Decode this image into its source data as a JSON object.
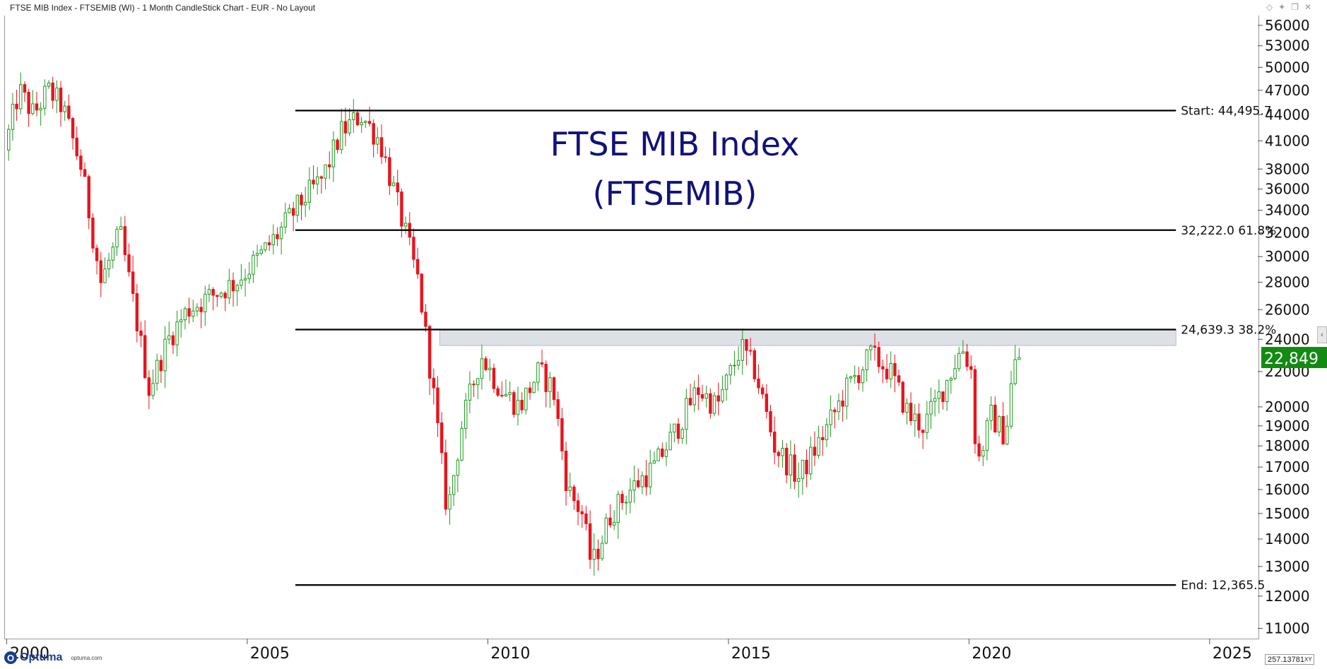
{
  "header": {
    "title": "FTSE MIB Index - FTSEMIB (WI) - 1 Month CandleStick Chart - EUR - No Layout"
  },
  "logo": {
    "name": "Optuma",
    "site": "optuma.com"
  },
  "status": {
    "coord": "257.13781",
    "xy_label": "XY"
  },
  "chart_data": {
    "type": "candlestick",
    "title": "FTSE MIB Index",
    "subtitle": "(FTSEMIB)",
    "x_ticks": [
      "2000",
      "2005",
      "2010",
      "2015",
      "2020",
      "2025"
    ],
    "y_ticks": [
      11000,
      12000,
      13000,
      14000,
      15000,
      16000,
      17000,
      18000,
      19000,
      20000,
      22000,
      24000,
      26000,
      28000,
      30000,
      32000,
      34000,
      36000,
      38000,
      41000,
      44000,
      47000,
      50000,
      53000,
      56000
    ],
    "y_scale": "log",
    "ylim": [
      10700,
      57500
    ],
    "xlim": [
      1999.95,
      2026.0
    ],
    "last_price_label": "22,849",
    "last_price": 22849,
    "levels": [
      {
        "label": "Start:   44,495.7",
        "value": 44495.7
      },
      {
        "label": "32,222.0   61.8%",
        "value": 32222.0
      },
      {
        "label": "24,639.3   38.2%",
        "value": 24639.3
      },
      {
        "label": "End:   12,365.5",
        "value": 12365.5
      }
    ],
    "level_x_range": [
      2006.0,
      2024.3
    ],
    "band": {
      "from": 23600,
      "to": 24639.3,
      "x_range": [
        2009.0,
        2024.3
      ]
    },
    "anchors": [
      [
        2000.0,
        40000
      ],
      [
        2000.3,
        47000
      ],
      [
        2000.6,
        44000
      ],
      [
        2000.9,
        47000
      ],
      [
        2001.2,
        45000
      ],
      [
        2001.6,
        38000
      ],
      [
        2002.0,
        28000
      ],
      [
        2002.4,
        32000
      ],
      [
        2002.7,
        26000
      ],
      [
        2003.0,
        21000
      ],
      [
        2003.4,
        24000
      ],
      [
        2003.8,
        26000
      ],
      [
        2004.3,
        27000
      ],
      [
        2004.8,
        28000
      ],
      [
        2005.3,
        30000
      ],
      [
        2005.7,
        32000
      ],
      [
        2006.2,
        35000
      ],
      [
        2006.6,
        37000
      ],
      [
        2007.0,
        42000
      ],
      [
        2007.4,
        44000
      ],
      [
        2007.8,
        41000
      ],
      [
        2008.2,
        34000
      ],
      [
        2008.6,
        28000
      ],
      [
        2008.9,
        21000
      ],
      [
        2009.2,
        15000
      ],
      [
        2009.5,
        19000
      ],
      [
        2009.9,
        23000
      ],
      [
        2010.3,
        21000
      ],
      [
        2010.7,
        20000
      ],
      [
        2011.1,
        22000
      ],
      [
        2011.4,
        21000
      ],
      [
        2011.7,
        16000
      ],
      [
        2012.0,
        15000
      ],
      [
        2012.2,
        13000
      ],
      [
        2012.6,
        15000
      ],
      [
        2013.0,
        16000
      ],
      [
        2013.5,
        17000
      ],
      [
        2014.0,
        19000
      ],
      [
        2014.4,
        21000
      ],
      [
        2014.8,
        20000
      ],
      [
        2015.3,
        23500
      ],
      [
        2015.6,
        22000
      ],
      [
        2016.0,
        18000
      ],
      [
        2016.5,
        16500
      ],
      [
        2017.0,
        18500
      ],
      [
        2017.5,
        21000
      ],
      [
        2018.0,
        23000
      ],
      [
        2018.4,
        22000
      ],
      [
        2018.8,
        19500
      ],
      [
        2019.1,
        19000
      ],
      [
        2019.5,
        21000
      ],
      [
        2019.9,
        23500
      ],
      [
        2020.1,
        22000
      ],
      [
        2020.2,
        17000
      ],
      [
        2020.5,
        19500
      ],
      [
        2020.8,
        18500
      ],
      [
        2020.95,
        22000
      ],
      [
        2021.05,
        22849
      ]
    ]
  }
}
